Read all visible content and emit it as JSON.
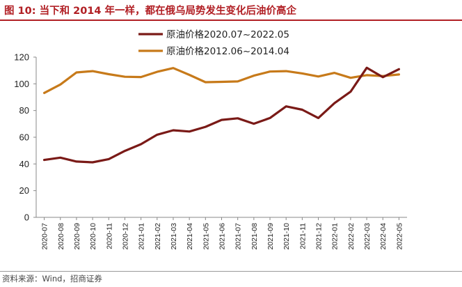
{
  "title": "图 10:  当下和 2014 年一样，都在俄乌局势发生变化后油价高企",
  "source": "资料来源：Wind，招商证券",
  "colors": {
    "title": "#b11f24",
    "series_a": "#7a1a17",
    "series_b": "#c77a1a"
  },
  "chart_data": {
    "type": "line",
    "title": "",
    "xlabel": "",
    "ylabel": "",
    "ylim": [
      0,
      120
    ],
    "yticks": [
      0,
      20,
      40,
      60,
      80,
      100,
      120
    ],
    "categories": [
      "2020-07",
      "2020-08",
      "2020-09",
      "2020-10",
      "2020-11",
      "2020-12",
      "2021-01",
      "2021-02",
      "2021-03",
      "2021-04",
      "2021-05",
      "2021-06",
      "2021-07",
      "2021-08",
      "2021-09",
      "2021-10",
      "2021-11",
      "2021-12",
      "2022-01",
      "2022-02",
      "2022-03",
      "2022-04",
      "2022-05"
    ],
    "series": [
      {
        "name": "原油价格2020.07~2022.05",
        "color": "#7a1a17",
        "values": [
          43,
          44.7,
          41.8,
          41.2,
          43.6,
          49.8,
          54.8,
          61.9,
          65.2,
          64.3,
          67.8,
          73,
          74.2,
          70.1,
          74.4,
          83.1,
          80.6,
          74.4,
          85.5,
          94.1,
          112,
          105,
          111
        ]
      },
      {
        "name": "原油价格2012.06~2014.04",
        "color": "#c77a1a",
        "values": [
          93.2,
          99.5,
          108.5,
          109.5,
          107.2,
          105.3,
          105.1,
          109,
          111.8,
          106.7,
          101.2,
          101.5,
          101.8,
          106.1,
          109.2,
          109.5,
          107.8,
          105.5,
          108.2,
          104.5,
          106.5,
          105.8,
          107
        ]
      }
    ],
    "legend_position": "top-center"
  }
}
